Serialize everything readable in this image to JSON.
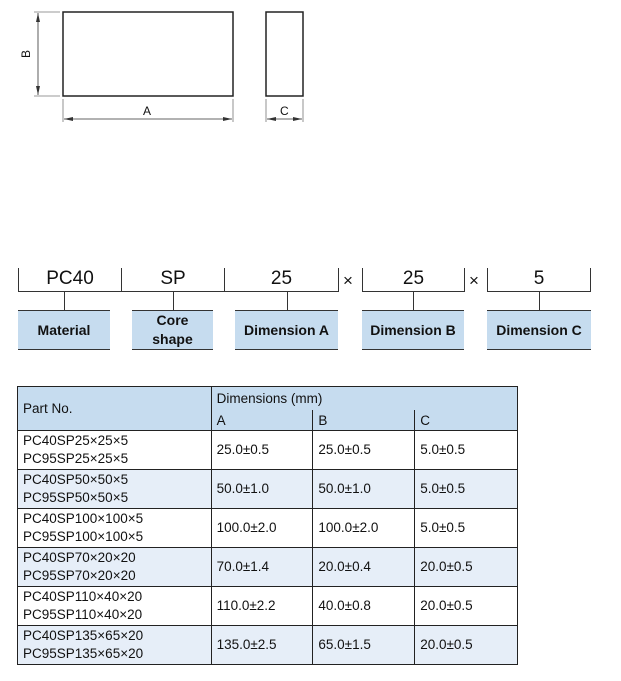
{
  "diagram": {
    "label_a": "A",
    "label_b": "B",
    "label_c": "C"
  },
  "code": {
    "segments": [
      "PC40",
      "SP",
      "25",
      "25",
      "5"
    ],
    "separator": "×",
    "labels": [
      "Material",
      "Core shape",
      "Dimension A",
      "Dimension B",
      "Dimension C"
    ]
  },
  "table": {
    "header_part": "Part No.",
    "header_dims": "Dimensions (mm)",
    "columns": [
      "A",
      "B",
      "C"
    ],
    "rows": [
      {
        "parts": [
          "PC40SP25×25×5",
          "PC95SP25×25×5"
        ],
        "a": "25.0±0.5",
        "b": "25.0±0.5",
        "c": "5.0±0.5"
      },
      {
        "parts": [
          "PC40SP50×50×5",
          "PC95SP50×50×5"
        ],
        "a": "50.0±1.0",
        "b": "50.0±1.0",
        "c": "5.0±0.5"
      },
      {
        "parts": [
          "PC40SP100×100×5",
          "PC95SP100×100×5"
        ],
        "a": "100.0±2.0",
        "b": "100.0±2.0",
        "c": "5.0±0.5"
      },
      {
        "parts": [
          "PC40SP70×20×20",
          "PC95SP70×20×20"
        ],
        "a": "70.0±1.4",
        "b": "20.0±0.4",
        "c": "20.0±0.5"
      },
      {
        "parts": [
          "PC40SP110×40×20",
          "PC95SP110×40×20"
        ],
        "a": "110.0±2.2",
        "b": "40.0±0.8",
        "c": "20.0±0.5"
      },
      {
        "parts": [
          "PC40SP135×65×20",
          "PC95SP135×65×20"
        ],
        "a": "135.0±2.5",
        "b": "65.0±1.5",
        "c": "20.0±0.5"
      }
    ]
  }
}
